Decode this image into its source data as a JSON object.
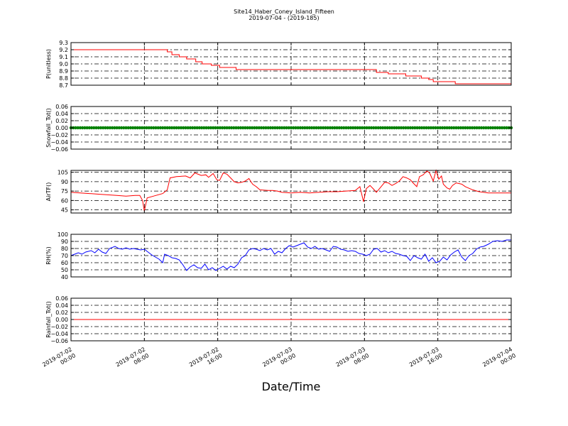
{
  "colors": {
    "p": "#ff0000",
    "snowfall": "#008000",
    "airtf": "#ff0000",
    "rh": "#0000ff",
    "rainfall": "#ff0000"
  },
  "chart_data": {
    "title": "Site14_Haber_Coney_Island_Fifteen",
    "subtitle": "2019-07-04 - (2019-185)",
    "xlabel": "Date/Time",
    "x_range": [
      "2019-07-02 00:00",
      "2019-07-04 00:00"
    ],
    "x_ticks": [
      {
        "line1": "2019-07-02",
        "line2": "00:00",
        "hours": 0
      },
      {
        "line1": "2019-07-02",
        "line2": "08:00",
        "hours": 8
      },
      {
        "line1": "2019-07-02",
        "line2": "16:00",
        "hours": 16
      },
      {
        "line1": "2019-07-03",
        "line2": "00:00",
        "hours": 24
      },
      {
        "line1": "2019-07-03",
        "line2": "08:00",
        "hours": 32
      },
      {
        "line1": "2019-07-03",
        "line2": "16:00",
        "hours": 40
      },
      {
        "line1": "2019-07-04",
        "line2": "00:00",
        "hours": 48
      }
    ],
    "panels": [
      {
        "name": "p",
        "type": "line",
        "ylabel": "P(unitless)",
        "color": "p",
        "ylim": [
          8.7,
          9.3
        ],
        "yticks": [
          "9.3",
          "9.2",
          "9.1",
          "9.0",
          "8.9",
          "8.8",
          "8.7"
        ],
        "step": true,
        "points": [
          [
            0,
            9.2
          ],
          [
            9.8,
            9.2
          ],
          [
            10.5,
            9.17
          ],
          [
            11,
            9.13
          ],
          [
            11.8,
            9.1
          ],
          [
            12.6,
            9.07
          ],
          [
            13.6,
            9.03
          ],
          [
            14.3,
            9.0
          ],
          [
            15.3,
            8.98
          ],
          [
            16.2,
            8.95
          ],
          [
            18,
            8.92
          ],
          [
            23,
            8.92
          ],
          [
            30,
            8.92
          ],
          [
            32.8,
            8.92
          ],
          [
            33.3,
            8.88
          ],
          [
            34.6,
            8.86
          ],
          [
            36.5,
            8.83
          ],
          [
            38.2,
            8.8
          ],
          [
            39,
            8.78
          ],
          [
            39.5,
            8.75
          ],
          [
            41.5,
            8.75
          ],
          [
            41.9,
            8.72
          ],
          [
            48,
            8.72
          ]
        ]
      },
      {
        "name": "snowfall",
        "type": "scatter",
        "ylabel": "Snowfall_Tot()",
        "color": "snowfall",
        "ylim": [
          -0.06,
          0.06
        ],
        "yticks": [
          "0.06",
          "0.04",
          "0.02",
          "0.00",
          "−0.02",
          "−0.04",
          "−0.06"
        ],
        "constant": 0.0
      },
      {
        "name": "airtf",
        "type": "line",
        "ylabel": "AirTF()",
        "color": "airtf",
        "ylim": [
          40,
          108
        ],
        "yticks": [
          "105",
          "90",
          "75",
          "60",
          "45"
        ],
        "ytick_values": [
          105,
          90,
          75,
          60,
          45
        ],
        "points": [
          [
            0,
            73
          ],
          [
            1,
            72
          ],
          [
            2,
            71
          ],
          [
            3,
            70
          ],
          [
            4,
            69
          ],
          [
            5,
            68
          ],
          [
            6,
            67
          ],
          [
            7,
            68
          ],
          [
            7.5,
            68
          ],
          [
            7.8,
            60
          ],
          [
            8,
            43
          ],
          [
            8.3,
            64
          ],
          [
            9,
            67
          ],
          [
            10,
            71
          ],
          [
            10.5,
            77
          ],
          [
            10.8,
            96
          ],
          [
            11.5,
            98
          ],
          [
            12.5,
            99
          ],
          [
            13,
            96
          ],
          [
            13.5,
            104
          ],
          [
            14.2,
            100
          ],
          [
            14.7,
            101
          ],
          [
            15,
            97
          ],
          [
            15.5,
            103
          ],
          [
            15.9,
            93
          ],
          [
            16.2,
            92
          ],
          [
            16.6,
            104
          ],
          [
            17,
            102
          ],
          [
            17.4,
            96
          ],
          [
            17.8,
            90
          ],
          [
            18.2,
            88
          ],
          [
            18.6,
            89
          ],
          [
            19,
            91
          ],
          [
            19.4,
            95
          ],
          [
            19.8,
            86
          ],
          [
            20.2,
            82
          ],
          [
            20.6,
            77
          ],
          [
            21.5,
            76
          ],
          [
            22,
            76
          ],
          [
            22.5,
            75
          ],
          [
            23,
            73
          ],
          [
            24,
            72
          ],
          [
            25,
            73
          ],
          [
            26,
            72
          ],
          [
            27,
            73
          ],
          [
            28,
            74
          ],
          [
            29,
            74
          ],
          [
            30,
            75
          ],
          [
            31,
            76
          ],
          [
            31.5,
            82
          ],
          [
            31.9,
            58
          ],
          [
            32.2,
            79
          ],
          [
            32.6,
            84
          ],
          [
            33,
            78
          ],
          [
            33.3,
            73
          ],
          [
            33.7,
            80
          ],
          [
            34.2,
            89
          ],
          [
            34.6,
            88
          ],
          [
            35,
            84
          ],
          [
            35.4,
            87
          ],
          [
            35.8,
            91
          ],
          [
            36.2,
            98
          ],
          [
            36.6,
            96
          ],
          [
            37,
            93
          ],
          [
            37.3,
            88
          ],
          [
            37.7,
            82
          ],
          [
            38,
            98
          ],
          [
            38.4,
            101
          ],
          [
            38.8,
            107
          ],
          [
            39.1,
            104
          ],
          [
            39.5,
            91
          ],
          [
            39.8,
            108
          ],
          [
            40.1,
            94
          ],
          [
            40.4,
            99
          ],
          [
            40.6,
            86
          ],
          [
            41,
            80
          ],
          [
            41.3,
            78
          ],
          [
            41.6,
            84
          ],
          [
            42,
            88
          ],
          [
            42.6,
            86
          ],
          [
            43,
            82
          ],
          [
            43.8,
            77
          ],
          [
            44.5,
            74
          ],
          [
            45.5,
            72
          ],
          [
            46.5,
            72
          ],
          [
            48,
            72
          ]
        ]
      },
      {
        "name": "rh",
        "type": "line",
        "ylabel": "RH(%)",
        "color": "rh",
        "ylim": [
          40,
          100
        ],
        "yticks": [
          "100",
          "90",
          "80",
          "70",
          "60",
          "50",
          "40"
        ],
        "points": [
          [
            0,
            70
          ],
          [
            0.8,
            74
          ],
          [
            1.2,
            72
          ],
          [
            1.6,
            75
          ],
          [
            2.2,
            77
          ],
          [
            2.6,
            74
          ],
          [
            3,
            79
          ],
          [
            3.4,
            75
          ],
          [
            3.8,
            73
          ],
          [
            4.2,
            80
          ],
          [
            4.8,
            83
          ],
          [
            5.2,
            80
          ],
          [
            5.6,
            79
          ],
          [
            6,
            81
          ],
          [
            6.4,
            79
          ],
          [
            6.8,
            80
          ],
          [
            7.2,
            79
          ],
          [
            7.6,
            78
          ],
          [
            8,
            79
          ],
          [
            8.4,
            75
          ],
          [
            8.8,
            71
          ],
          [
            9.2,
            68
          ],
          [
            9.6,
            65
          ],
          [
            10,
            60
          ],
          [
            10.2,
            72
          ],
          [
            10.6,
            70
          ],
          [
            11,
            67
          ],
          [
            11.4,
            66
          ],
          [
            11.8,
            64
          ],
          [
            12.2,
            57
          ],
          [
            12.6,
            49
          ],
          [
            13,
            54
          ],
          [
            13.4,
            57
          ],
          [
            13.8,
            53
          ],
          [
            14.2,
            52
          ],
          [
            14.6,
            58
          ],
          [
            15,
            50
          ],
          [
            15.4,
            53
          ],
          [
            15.8,
            49
          ],
          [
            16.2,
            52
          ],
          [
            16.6,
            55
          ],
          [
            17,
            51
          ],
          [
            17.4,
            55
          ],
          [
            17.8,
            53
          ],
          [
            18.2,
            58
          ],
          [
            18.6,
            67
          ],
          [
            19,
            70
          ],
          [
            19.4,
            78
          ],
          [
            19.8,
            80
          ],
          [
            20.2,
            79
          ],
          [
            20.6,
            77
          ],
          [
            21,
            80
          ],
          [
            21.4,
            78
          ],
          [
            21.8,
            80
          ],
          [
            22.2,
            72
          ],
          [
            22.6,
            76
          ],
          [
            23,
            74
          ],
          [
            23.4,
            80
          ],
          [
            23.8,
            84
          ],
          [
            24.2,
            82
          ],
          [
            24.6,
            84
          ],
          [
            25,
            86
          ],
          [
            25.4,
            88
          ],
          [
            25.8,
            82
          ],
          [
            26.2,
            80
          ],
          [
            26.6,
            83
          ],
          [
            27,
            79
          ],
          [
            27.4,
            80
          ],
          [
            27.8,
            78
          ],
          [
            28.2,
            76
          ],
          [
            28.6,
            83
          ],
          [
            29,
            82
          ],
          [
            29.4,
            79
          ],
          [
            29.8,
            78
          ],
          [
            30.2,
            76
          ],
          [
            30.6,
            77
          ],
          [
            31,
            76
          ],
          [
            31.4,
            73
          ],
          [
            31.8,
            72
          ],
          [
            32.2,
            70
          ],
          [
            32.6,
            72
          ],
          [
            33,
            79
          ],
          [
            33.4,
            80
          ],
          [
            33.8,
            75
          ],
          [
            34.2,
            77
          ],
          [
            34.6,
            74
          ],
          [
            35,
            76
          ],
          [
            35.4,
            73
          ],
          [
            35.8,
            72
          ],
          [
            36.2,
            70
          ],
          [
            36.6,
            69
          ],
          [
            37,
            63
          ],
          [
            37.4,
            70
          ],
          [
            37.8,
            67
          ],
          [
            38.2,
            65
          ],
          [
            38.6,
            72
          ],
          [
            39,
            62
          ],
          [
            39.4,
            67
          ],
          [
            39.8,
            60
          ],
          [
            40.2,
            62
          ],
          [
            40.6,
            68
          ],
          [
            41,
            64
          ],
          [
            41.4,
            71
          ],
          [
            41.8,
            75
          ],
          [
            42.2,
            78
          ],
          [
            42.6,
            68
          ],
          [
            43,
            63
          ],
          [
            43.4,
            70
          ],
          [
            43.8,
            73
          ],
          [
            44.2,
            79
          ],
          [
            44.6,
            82
          ],
          [
            45,
            83
          ],
          [
            45.5,
            86
          ],
          [
            46,
            90
          ],
          [
            46.5,
            91
          ],
          [
            47,
            90
          ],
          [
            47.5,
            92
          ],
          [
            48,
            92
          ]
        ]
      },
      {
        "name": "rainfall",
        "type": "line",
        "ylabel": "Rainfall_Tot()",
        "color": "rainfall",
        "ylim": [
          -0.06,
          0.06
        ],
        "yticks": [
          "0.06",
          "0.04",
          "0.02",
          "0.00",
          "−0.02",
          "−0.04",
          "−0.06"
        ],
        "points": [
          [
            0,
            0
          ],
          [
            48,
            0
          ]
        ]
      }
    ]
  }
}
